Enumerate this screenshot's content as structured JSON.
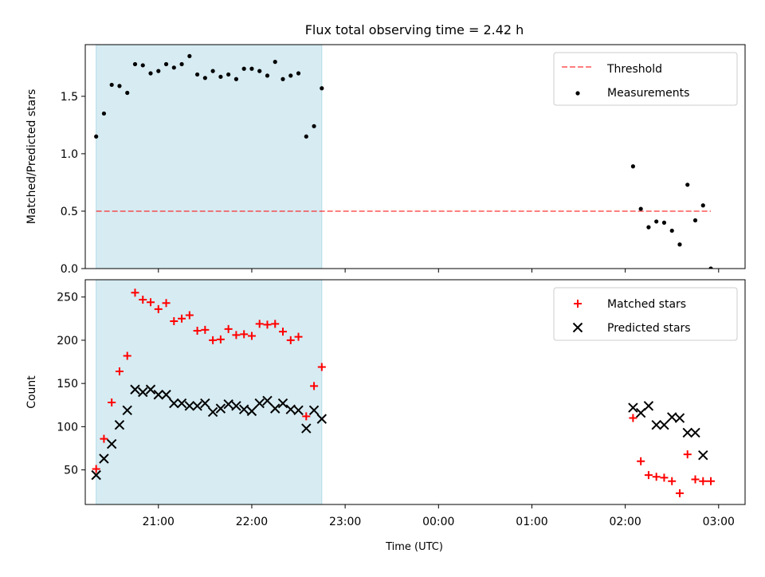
{
  "title": "Flux total observing time = 2.42 h",
  "xlabel": "Time (UTC)",
  "x_tick_labels": [
    "21:00",
    "22:00",
    "23:00",
    "00:00",
    "01:00",
    "02:00",
    "03:00"
  ],
  "colors": {
    "shade": "#add8e6",
    "threshold": "#ff0000",
    "measurements": "#000000",
    "matched": "#ff0000",
    "predicted": "#000000"
  },
  "chart_data": [
    {
      "type": "scatter",
      "ylabel": "Matched/Predicted stars",
      "ylim": [
        0,
        1.95
      ],
      "xlim": [
        "20:13",
        "03:17"
      ],
      "y_tick_labels": [
        "0.0",
        "0.5",
        "1.0",
        "1.5"
      ],
      "y_ticks": [
        0,
        0.5,
        1.0,
        1.5
      ],
      "shaded_region": [
        "20:20",
        "22:45"
      ],
      "legend": {
        "placement": "upper right",
        "entries": [
          "Threshold",
          "Measurements"
        ]
      },
      "grid": false,
      "threshold": {
        "name": "Threshold",
        "y": 0.5,
        "x_from": "20:20",
        "x_to": "02:55",
        "style": "dashed"
      },
      "series": [
        {
          "name": "Measurements",
          "x": [
            "20:20",
            "20:25",
            "20:30",
            "20:35",
            "20:40",
            "20:45",
            "20:50",
            "20:55",
            "21:00",
            "21:05",
            "21:10",
            "21:15",
            "21:20",
            "21:25",
            "21:30",
            "21:35",
            "21:40",
            "21:45",
            "21:50",
            "21:55",
            "22:00",
            "22:05",
            "22:10",
            "22:15",
            "22:20",
            "22:25",
            "22:30",
            "22:35",
            "22:40",
            "22:45",
            "02:05",
            "02:10",
            "02:15",
            "02:20",
            "02:25",
            "02:30",
            "02:35",
            "02:40",
            "02:45",
            "02:50",
            "02:55"
          ],
          "values": [
            1.15,
            1.35,
            1.6,
            1.59,
            1.53,
            1.78,
            1.77,
            1.7,
            1.72,
            1.78,
            1.75,
            1.78,
            1.85,
            1.69,
            1.66,
            1.72,
            1.67,
            1.69,
            1.65,
            1.74,
            1.74,
            1.72,
            1.68,
            1.8,
            1.65,
            1.68,
            1.7,
            1.15,
            1.24,
            1.57,
            0.89,
            0.52,
            0.36,
            0.41,
            0.4,
            0.33,
            0.21,
            0.73,
            0.42,
            0.55,
            0.0
          ]
        }
      ]
    },
    {
      "type": "scatter",
      "ylabel": "Count",
      "ylim": [
        10,
        270
      ],
      "xlim": [
        "20:13",
        "03:17"
      ],
      "y_tick_labels": [
        "50",
        "100",
        "150",
        "200",
        "250"
      ],
      "y_ticks": [
        50,
        100,
        150,
        200,
        250
      ],
      "shaded_region": [
        "20:20",
        "22:45"
      ],
      "legend": {
        "placement": "upper right",
        "entries": [
          "Matched stars",
          "Predicted stars"
        ]
      },
      "grid": false,
      "series": [
        {
          "name": "Matched stars",
          "marker": "plus",
          "x": [
            "20:20",
            "20:25",
            "20:30",
            "20:35",
            "20:40",
            "20:45",
            "20:50",
            "20:55",
            "21:00",
            "21:05",
            "21:10",
            "21:15",
            "21:20",
            "21:25",
            "21:30",
            "21:35",
            "21:40",
            "21:45",
            "21:50",
            "21:55",
            "22:00",
            "22:05",
            "22:10",
            "22:15",
            "22:20",
            "22:25",
            "22:30",
            "22:35",
            "22:40",
            "22:45",
            "02:05",
            "02:10",
            "02:15",
            "02:20",
            "02:25",
            "02:30",
            "02:35",
            "02:40",
            "02:45",
            "02:50",
            "02:55"
          ],
          "values": [
            51,
            86,
            128,
            164,
            182,
            255,
            247,
            244,
            236,
            243,
            222,
            225,
            229,
            211,
            212,
            200,
            201,
            213,
            206,
            207,
            205,
            219,
            218,
            219,
            210,
            200,
            204,
            112,
            147,
            169,
            110,
            60,
            44,
            42,
            41,
            37,
            23,
            68,
            39,
            37,
            37
          ]
        },
        {
          "name": "Predicted stars",
          "marker": "x",
          "x": [
            "20:20",
            "20:25",
            "20:30",
            "20:35",
            "20:40",
            "20:45",
            "20:50",
            "20:55",
            "21:00",
            "21:05",
            "21:10",
            "21:15",
            "21:20",
            "21:25",
            "21:30",
            "21:35",
            "21:40",
            "21:45",
            "21:50",
            "21:55",
            "22:00",
            "22:05",
            "22:10",
            "22:15",
            "22:20",
            "22:25",
            "22:30",
            "22:35",
            "22:40",
            "22:45",
            "02:05",
            "02:10",
            "02:15",
            "02:20",
            "02:25",
            "02:30",
            "02:35",
            "02:40",
            "02:45",
            "02:50"
          ],
          "values": [
            44,
            63,
            80,
            102,
            119,
            143,
            140,
            143,
            137,
            137,
            127,
            127,
            124,
            124,
            127,
            117,
            121,
            126,
            124,
            120,
            118,
            127,
            130,
            121,
            127,
            120,
            119,
            98,
            119,
            109,
            122,
            116,
            124,
            102,
            102,
            111,
            110,
            93,
            93,
            67
          ]
        }
      ]
    }
  ]
}
